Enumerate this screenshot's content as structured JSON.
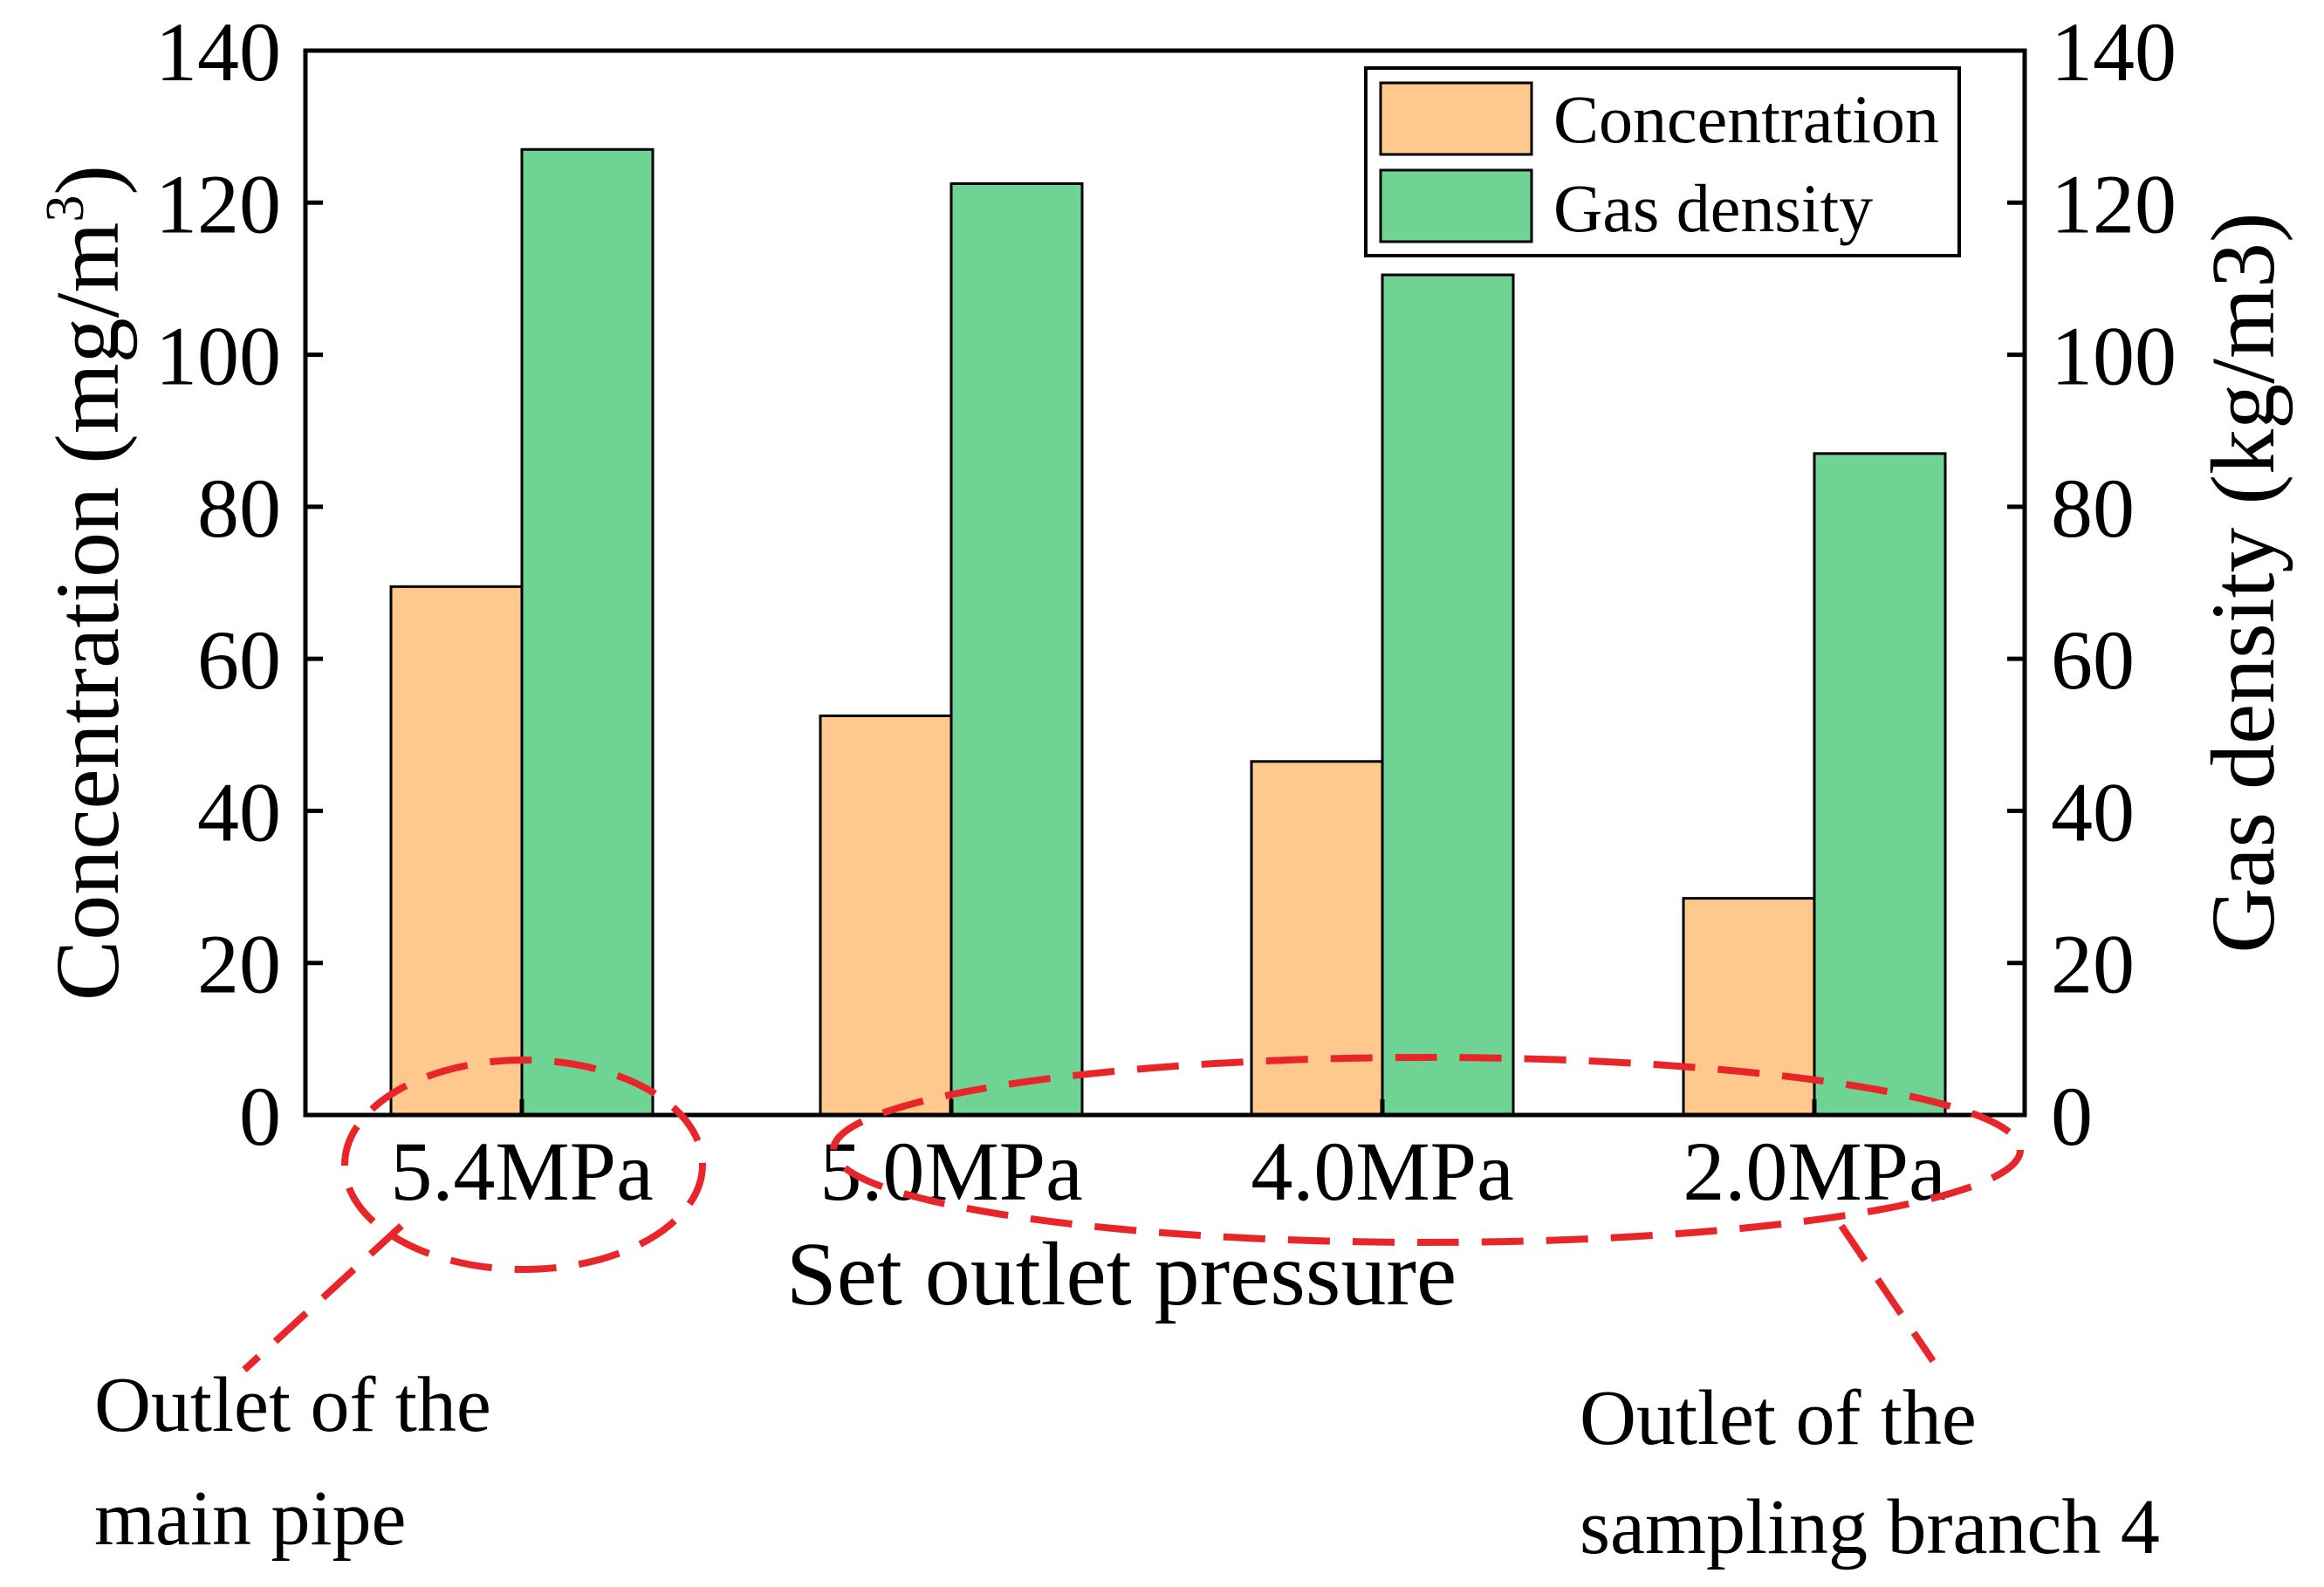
{
  "chart_data": {
    "type": "bar",
    "categories": [
      "5.4MPa",
      "5.0MPa",
      "4.0MPa",
      "2.0MPa"
    ],
    "series": [
      {
        "name": "Concentration",
        "axis": "left",
        "color": "#FFC98E",
        "values": [
          69.5,
          52.5,
          46.5,
          28.5
        ]
      },
      {
        "name": "Gas density",
        "axis": "right",
        "color": "#6FD394",
        "values": [
          127,
          122.5,
          110.5,
          87
        ]
      }
    ],
    "xlabel": "Set outlet pressure",
    "ylabel_left": {
      "main": "Concentration (mg/m",
      "sup": "3",
      "close": ")"
    },
    "ylabel_right": "Gas density (kg/m3)",
    "ylim_left": [
      0,
      140
    ],
    "ylim_right": [
      0,
      140
    ],
    "yticks_left": [
      "0",
      "20",
      "40",
      "60",
      "80",
      "100",
      "120",
      "140"
    ],
    "yticks_right": [
      "0",
      "20",
      "40",
      "60",
      "80",
      "100",
      "120",
      "140"
    ],
    "grid": false,
    "legend_position": "top-right",
    "annotations": [
      {
        "text_line1": "Outlet of the",
        "text_line2": "main pipe",
        "target": "5.4MPa",
        "style": "red dashed ellipse"
      },
      {
        "text_line1": "Outlet of the",
        "text_line2": "sampling branch 4",
        "target": [
          "5.0MPa",
          "4.0MPa",
          "2.0MPa"
        ],
        "style": "red dashed ellipse"
      }
    ],
    "annotation_color": "#E8262A",
    "axis_color": "#000000"
  }
}
